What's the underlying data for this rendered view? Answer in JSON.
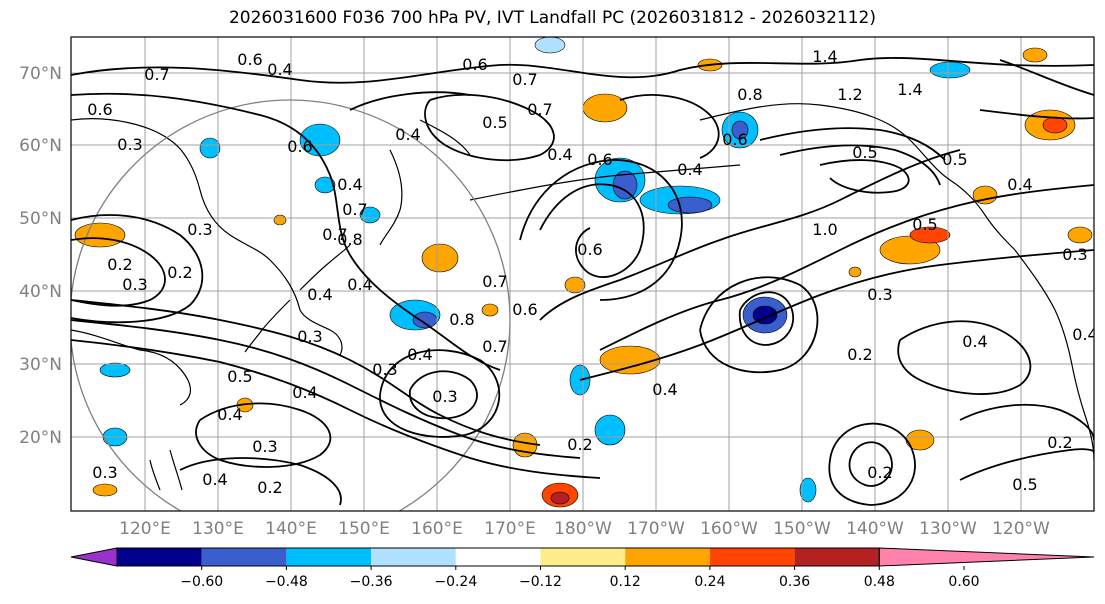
{
  "title": "2026031600 F036 700 hPa PV, IVT Landfall PC (2026031812 - 2026032112)",
  "lat_labels": [
    "70°N",
    "60°N",
    "50°N",
    "40°N",
    "30°N",
    "20°N"
  ],
  "lon_labels": [
    "120°E",
    "130°E",
    "140°E",
    "150°E",
    "160°E",
    "170°E",
    "180°W",
    "170°W",
    "160°W",
    "150°W",
    "140°W",
    "130°W",
    "120°W"
  ],
  "colorbar": {
    "ticks": [
      "−0.60",
      "−0.48",
      "−0.36",
      "−0.24",
      "−0.12",
      "0.12",
      "0.24",
      "0.36",
      "0.48",
      "0.60"
    ],
    "colors": [
      "#9932cc",
      "#00008b",
      "#3a5fcd",
      "#00bfff",
      "#b0e2ff",
      "#ffffff",
      "#ffec8b",
      "#ffa500",
      "#ff4500",
      "#b22222",
      "#ff82ab"
    ]
  },
  "contour_labels": [
    "0.7",
    "0.6",
    "0.4",
    "0.6",
    "0.7",
    "0.5",
    "0.7",
    "0.6",
    "1.4",
    "1.2",
    "1.4",
    "0.8",
    "0.6",
    "0.6",
    "0.4",
    "0.4",
    "0.5",
    "0.5",
    "0.4",
    "0.4",
    "1.0",
    "0.5",
    "0.8",
    "0.7",
    "0.6",
    "0.3",
    "0.2",
    "0.3",
    "0.2",
    "0.2",
    "0.4",
    "0.3",
    "0.4",
    "0.7",
    "0.8",
    "0.7",
    "0.6",
    "0.4",
    "0.3",
    "0.4",
    "0.4",
    "0.3",
    "0.5",
    "0.4",
    "0.3",
    "0.4",
    "0.2",
    "0.3",
    "0.2",
    "0.2",
    "0.3",
    "0.4",
    "0.5",
    "0.2",
    "0.3",
    "0.4",
    "0.4",
    "0.7",
    "0.3",
    "0.6"
  ]
}
